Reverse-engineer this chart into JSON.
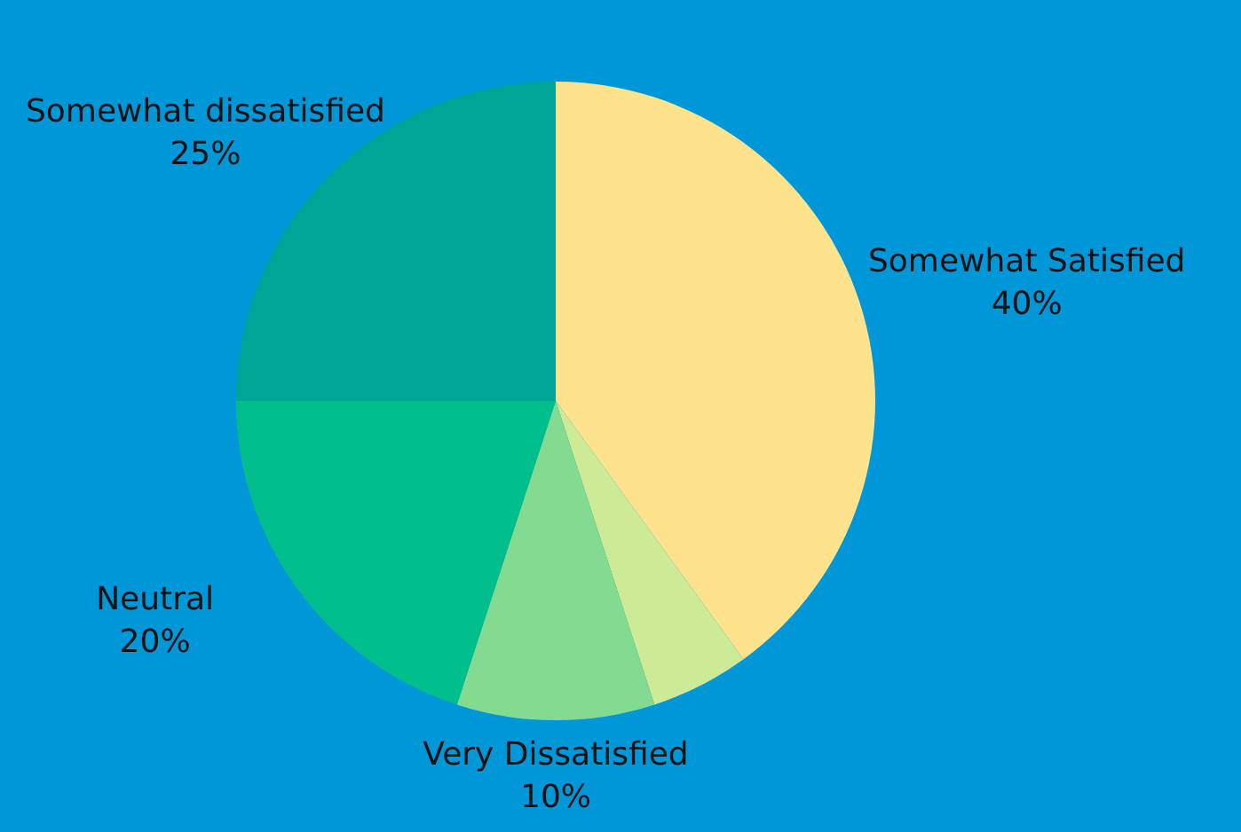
{
  "chart_data": {
    "type": "pie",
    "categories": [
      "Somewhat Satisfied",
      null,
      "Very Dissatisfied",
      "Neutral",
      "Somewhat dissatisfied"
    ],
    "values": [
      40,
      5,
      10,
      20,
      25
    ],
    "value_labels": [
      "40%",
      null,
      "10%",
      "20%",
      "25%"
    ],
    "colors": [
      "#fee38c",
      "#cdeb96",
      "#82db91",
      "#00bf8c",
      "#00a596"
    ],
    "legend": false
  }
}
